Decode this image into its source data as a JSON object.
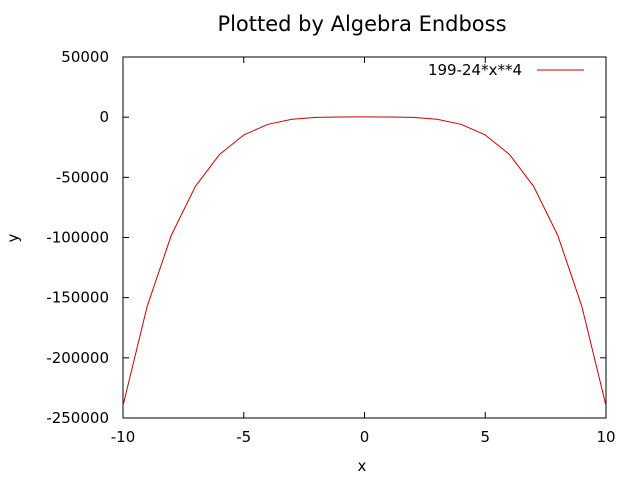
{
  "chart_data": {
    "type": "line",
    "title": "Plotted by Algebra Endboss",
    "xlabel": "x",
    "ylabel": "y",
    "xlim": [
      -10,
      10
    ],
    "ylim": [
      -250000,
      50000
    ],
    "xticks": [
      -10,
      -5,
      0,
      5,
      10
    ],
    "xtick_labels": [
      "-10",
      "-5",
      "0",
      "5",
      "10"
    ],
    "yticks": [
      50000,
      0,
      -50000,
      -100000,
      -150000,
      -200000,
      -250000
    ],
    "ytick_labels": [
      "50000",
      "0",
      "-50000",
      "-100000",
      "-150000",
      "-200000",
      "-250000"
    ],
    "grid": false,
    "legend_position": "top-right",
    "series": [
      {
        "name": "199-24*x**4",
        "color": "#cc0000",
        "x": [
          -10,
          -9,
          -8,
          -7,
          -6,
          -5,
          -4,
          -3,
          -2,
          -1,
          0,
          1,
          2,
          3,
          4,
          5,
          6,
          7,
          8,
          9,
          10
        ],
        "y": [
          -239801,
          -157265,
          -98105,
          -57425,
          -30905,
          -14801,
          -5945,
          -1745,
          -185,
          175,
          199,
          175,
          -185,
          -1745,
          -5945,
          -14801,
          -30905,
          -57425,
          -98105,
          -157265,
          -239801
        ]
      }
    ]
  }
}
